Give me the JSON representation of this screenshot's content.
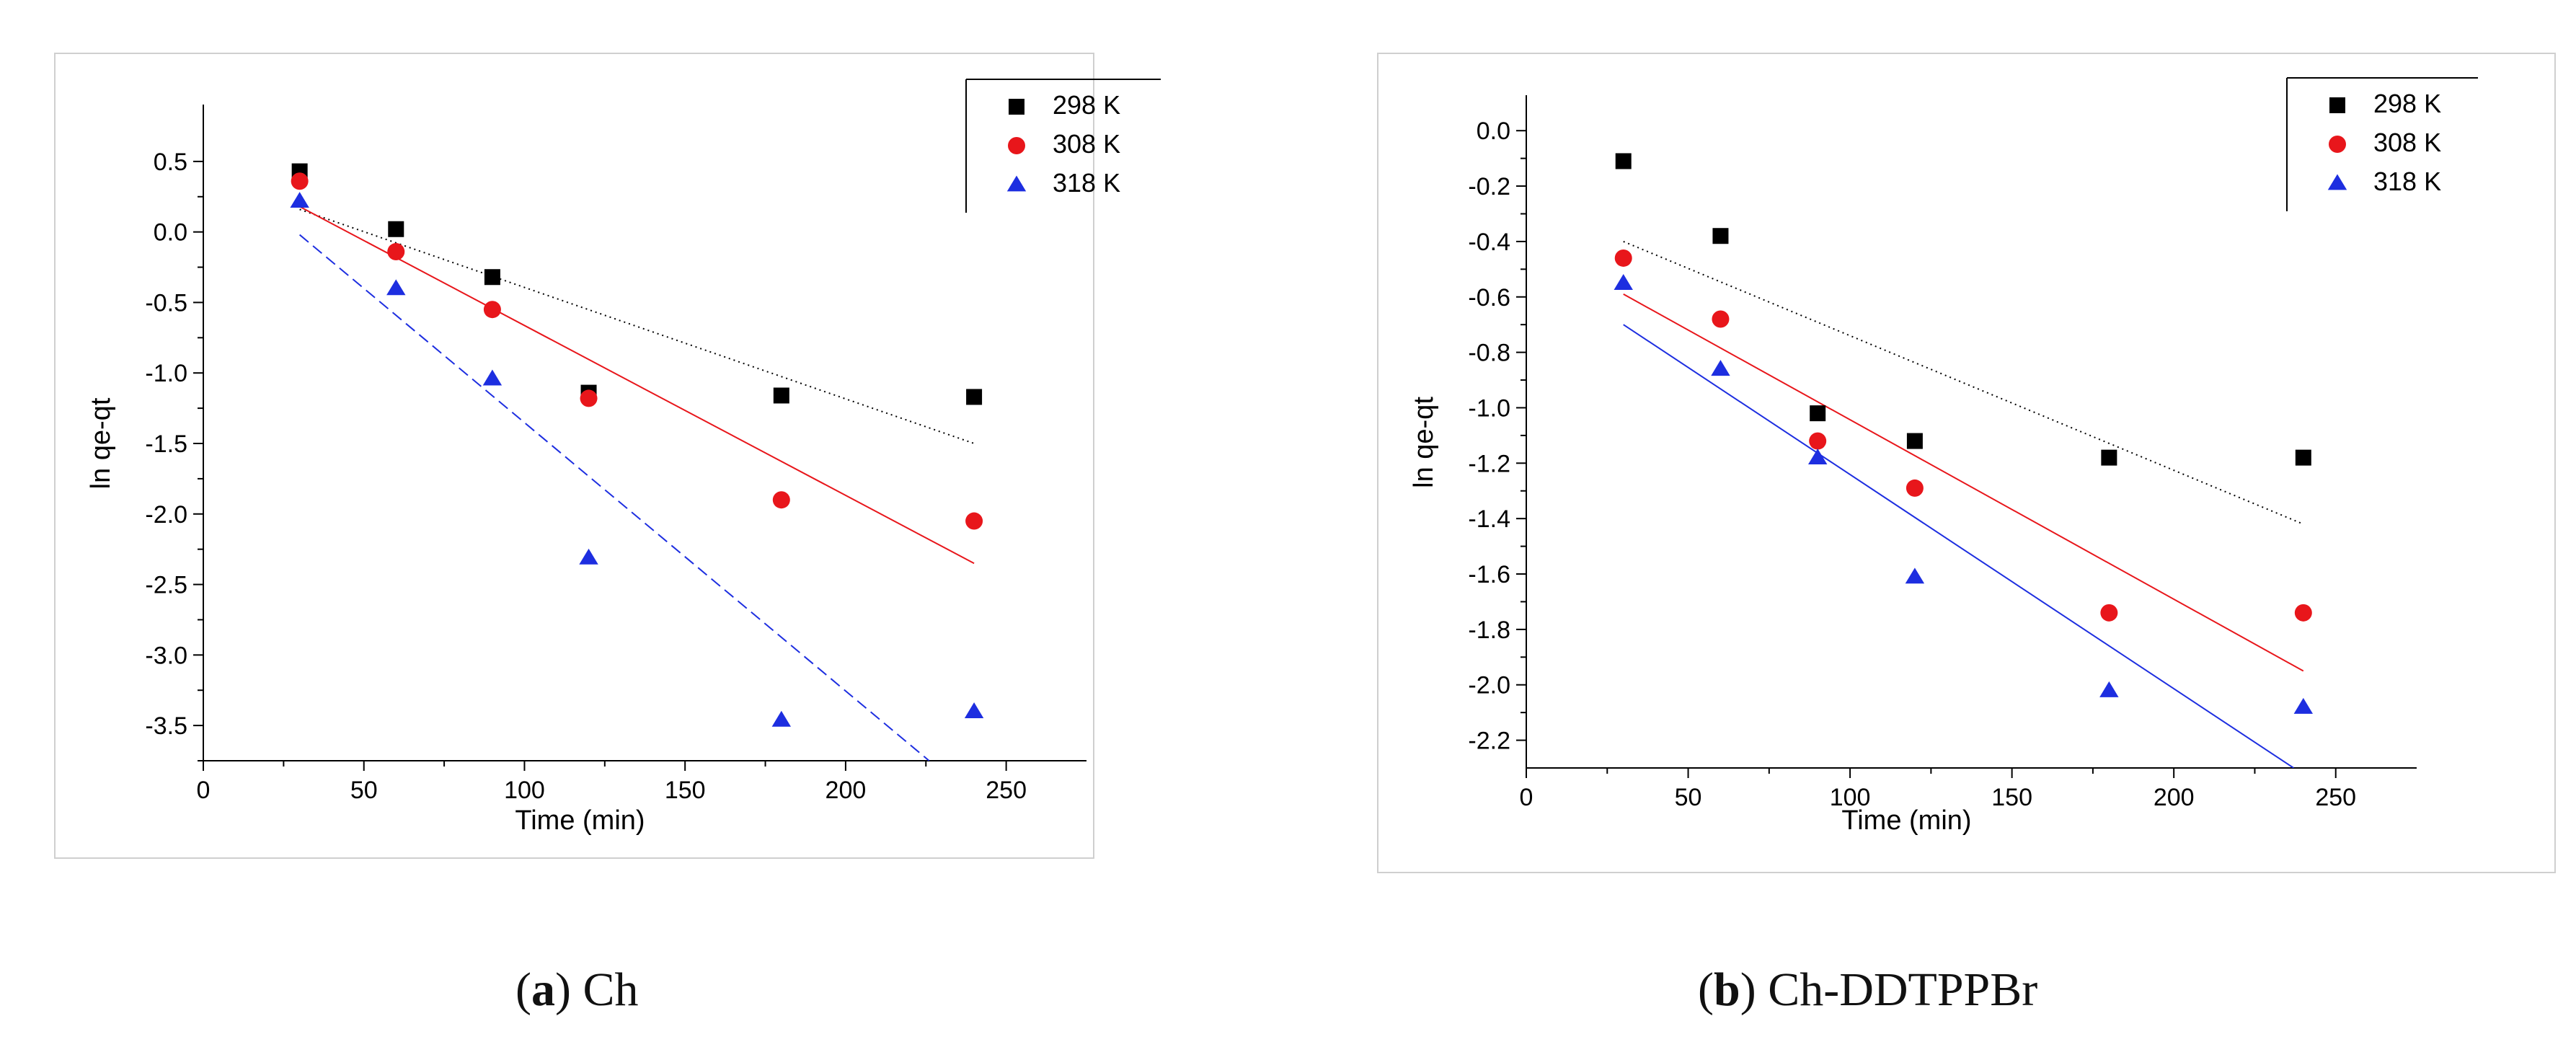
{
  "chart_data": [
    {
      "type": "scatter",
      "panel": "a",
      "caption_letter": "a",
      "caption_text": "Ch",
      "xlabel": "Time (min)",
      "ylabel": "ln qe-qt",
      "xlim": [
        0,
        275
      ],
      "ylim": [
        -3.75,
        0.75
      ],
      "xticks": [
        0,
        50,
        100,
        150,
        200,
        250
      ],
      "yticks": [
        0.5,
        0.0,
        -0.5,
        -1.0,
        -1.5,
        -2.0,
        -2.5,
        -3.0,
        -3.5
      ],
      "legend_position": "top-right",
      "series": [
        {
          "name": "298 K",
          "marker": "square",
          "color": "#000000",
          "x": [
            30,
            60,
            90,
            120,
            180,
            240
          ],
          "y": [
            0.43,
            0.02,
            -0.32,
            -1.14,
            -1.16,
            -1.17
          ],
          "fit": {
            "x": [
              30,
              240
            ],
            "y": [
              0.16,
              -1.5
            ],
            "dash": "2,5"
          }
        },
        {
          "name": "308 K",
          "marker": "circle",
          "color": "#e8161b",
          "x": [
            30,
            60,
            90,
            120,
            180,
            240
          ],
          "y": [
            0.36,
            -0.14,
            -0.55,
            -1.18,
            -1.9,
            -2.05
          ],
          "fit": {
            "x": [
              30,
              240
            ],
            "y": [
              0.18,
              -2.35
            ],
            "dash": ""
          }
        },
        {
          "name": "318 K",
          "marker": "triangle",
          "color": "#1d2ee0",
          "x": [
            30,
            60,
            90,
            120,
            180,
            240
          ],
          "y": [
            0.22,
            -0.4,
            -1.04,
            -2.31,
            -3.46,
            -3.4
          ],
          "fit": {
            "x": [
              30,
              226
            ],
            "y": [
              -0.02,
              -3.75
            ],
            "dash": "16,8"
          }
        }
      ]
    },
    {
      "type": "scatter",
      "panel": "b",
      "caption_letter": "b",
      "caption_text": "Ch-DDTPPBr",
      "xlabel": "Time (min)",
      "ylabel": "ln qe-qt",
      "xlim": [
        0,
        275
      ],
      "ylim": [
        -2.3,
        0.05
      ],
      "xticks": [
        0,
        50,
        100,
        150,
        200,
        250
      ],
      "yticks": [
        0.0,
        -0.2,
        -0.4,
        -0.6,
        -0.8,
        -1.0,
        -1.2,
        -1.4,
        -1.6,
        -1.8,
        -2.0,
        -2.2
      ],
      "legend_position": "top-right",
      "series": [
        {
          "name": "298 K",
          "marker": "square",
          "color": "#000000",
          "x": [
            30,
            60,
            90,
            120,
            180,
            240
          ],
          "y": [
            -0.11,
            -0.38,
            -1.02,
            -1.12,
            -1.18,
            -1.18
          ],
          "fit": {
            "x": [
              30,
              240
            ],
            "y": [
              -0.4,
              -1.42
            ],
            "dash": "2,5"
          }
        },
        {
          "name": "308 K",
          "marker": "circle",
          "color": "#e8161b",
          "x": [
            30,
            60,
            90,
            120,
            180,
            240
          ],
          "y": [
            -0.46,
            -0.68,
            -1.12,
            -1.29,
            -1.74,
            -1.74
          ],
          "fit": {
            "x": [
              30,
              240
            ],
            "y": [
              -0.59,
              -1.95
            ],
            "dash": ""
          }
        },
        {
          "name": "318 K",
          "marker": "triangle",
          "color": "#1d2ee0",
          "x": [
            30,
            60,
            90,
            120,
            180,
            240
          ],
          "y": [
            -0.55,
            -0.86,
            -1.18,
            -1.61,
            -2.02,
            -2.08
          ],
          "fit": {
            "x": [
              30,
              237
            ],
            "y": [
              -0.7,
              -2.3
            ],
            "dash": ""
          }
        }
      ]
    }
  ]
}
